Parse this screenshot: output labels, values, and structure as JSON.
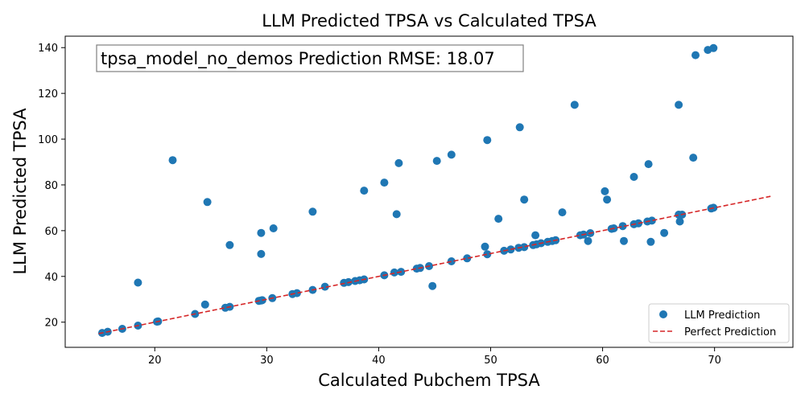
{
  "chart_data": {
    "type": "scatter",
    "title": "LLM Predicted TPSA vs Calculated TPSA",
    "xlabel": "Calculated Pubchem TPSA",
    "ylabel": "LLM Predicted TPSA",
    "xlim": [
      12,
      77
    ],
    "ylim": [
      9,
      145
    ],
    "xticks": [
      20,
      30,
      40,
      50,
      60,
      70
    ],
    "yticks": [
      20,
      40,
      60,
      80,
      100,
      120,
      140
    ],
    "annotation": "tpsa_model_no_demos Prediction RMSE: 18.07",
    "legend_position": "lower-right",
    "series": [
      {
        "name": "LLM Prediction",
        "color": "#1f77b4",
        "points": [
          [
            15.3,
            15.3
          ],
          [
            15.8,
            15.8
          ],
          [
            17.1,
            17.1
          ],
          [
            18.5,
            18.5
          ],
          [
            18.5,
            37.3
          ],
          [
            20.2,
            20.2
          ],
          [
            20.3,
            20.3
          ],
          [
            21.6,
            90.8
          ],
          [
            23.6,
            23.6
          ],
          [
            24.5,
            27.7
          ],
          [
            24.7,
            72.5
          ],
          [
            26.3,
            26.3
          ],
          [
            26.7,
            26.7
          ],
          [
            26.7,
            53.7
          ],
          [
            29.3,
            29.3
          ],
          [
            29.5,
            29.5
          ],
          [
            29.5,
            49.8
          ],
          [
            29.5,
            59.0
          ],
          [
            29.6,
            29.6
          ],
          [
            30.5,
            30.5
          ],
          [
            30.6,
            61.0
          ],
          [
            32.3,
            32.3
          ],
          [
            32.7,
            32.7
          ],
          [
            34.1,
            34.1
          ],
          [
            34.1,
            68.3
          ],
          [
            35.2,
            35.5
          ],
          [
            36.9,
            37.2
          ],
          [
            37.3,
            37.5
          ],
          [
            37.9,
            38.0
          ],
          [
            38.3,
            38.3
          ],
          [
            38.7,
            38.7
          ],
          [
            38.7,
            77.5
          ],
          [
            40.5,
            40.5
          ],
          [
            40.5,
            81.0
          ],
          [
            41.4,
            41.7
          ],
          [
            41.6,
            67.2
          ],
          [
            41.8,
            89.5
          ],
          [
            42.0,
            42.0
          ],
          [
            43.4,
            43.4
          ],
          [
            43.7,
            43.7
          ],
          [
            44.5,
            44.5
          ],
          [
            44.8,
            35.8
          ],
          [
            45.2,
            90.5
          ],
          [
            46.5,
            46.6
          ],
          [
            46.5,
            93.2
          ],
          [
            47.9,
            47.9
          ],
          [
            49.5,
            53.0
          ],
          [
            49.7,
            49.7
          ],
          [
            49.7,
            99.6
          ],
          [
            50.7,
            65.2
          ],
          [
            51.2,
            51.2
          ],
          [
            51.8,
            51.8
          ],
          [
            52.5,
            52.5
          ],
          [
            52.6,
            105.2
          ],
          [
            53.0,
            52.8
          ],
          [
            53.0,
            73.6
          ],
          [
            53.8,
            53.7
          ],
          [
            54.0,
            58.0
          ],
          [
            54.1,
            54.0
          ],
          [
            54.5,
            54.5
          ],
          [
            55.1,
            55.1
          ],
          [
            55.5,
            55.5
          ],
          [
            55.8,
            55.8
          ],
          [
            56.4,
            68.0
          ],
          [
            57.5,
            115.0
          ],
          [
            58.0,
            58.0
          ],
          [
            58.3,
            58.3
          ],
          [
            58.7,
            55.5
          ],
          [
            58.9,
            58.9
          ],
          [
            60.2,
            77.2
          ],
          [
            60.4,
            73.6
          ],
          [
            60.8,
            60.8
          ],
          [
            61.0,
            61.0
          ],
          [
            61.8,
            62.0
          ],
          [
            61.9,
            55.5
          ],
          [
            62.8,
            83.5
          ],
          [
            62.8,
            62.8
          ],
          [
            63.2,
            63.2
          ],
          [
            64.0,
            64.0
          ],
          [
            64.1,
            89.1
          ],
          [
            64.3,
            55.1
          ],
          [
            64.4,
            64.4
          ],
          [
            65.5,
            59.0
          ],
          [
            66.8,
            115.0
          ],
          [
            66.8,
            67.0
          ],
          [
            66.9,
            64.0
          ],
          [
            67.1,
            67.0
          ],
          [
            68.1,
            91.9
          ],
          [
            68.3,
            136.7
          ],
          [
            69.4,
            139.0
          ],
          [
            69.7,
            69.7
          ],
          [
            69.9,
            70.0
          ],
          [
            69.9,
            139.8
          ]
        ]
      },
      {
        "name": "Perfect Prediction",
        "color": "#d62728",
        "style": "dashed",
        "line": [
          [
            15,
            15
          ],
          [
            75,
            75
          ]
        ]
      }
    ]
  }
}
